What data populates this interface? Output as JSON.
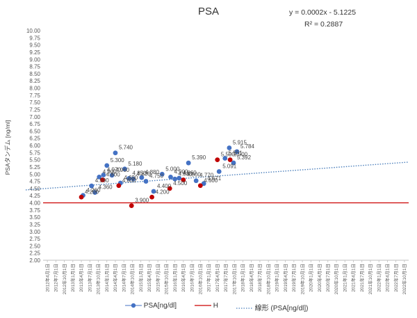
{
  "chart_data": {
    "type": "scatter",
    "title": "PSA",
    "trendline_equation": "y = 0.0002x - 5.1225",
    "r_squared": "R² = 0.2887",
    "ylabel": "PSAタンデム [ng/ml]",
    "xlabel": "",
    "ylim": [
      2.0,
      10.0
    ],
    "ystep": 0.25,
    "x_ticks": [
      "2012年4月1日",
      "2012年7月1日",
      "2012年10月1日",
      "2013年1月1日",
      "2013年4月1日",
      "2013年7月1日",
      "2013年10月1日",
      "2014年1月1日",
      "2014年4月1日",
      "2014年7月1日",
      "2014年10月1日",
      "2015年1月1日",
      "2015年4月1日",
      "2015年7月1日",
      "2015年10月1日",
      "2016年1月1日",
      "2016年4月1日",
      "2016年7月1日",
      "2016年10月1日",
      "2017年1月1日",
      "2017年4月1日",
      "2017年7月1日",
      "2017年10月1日",
      "2018年1月1日",
      "2018年4月1日",
      "2018年7月1日",
      "2018年10月1日",
      "2019年1月1日",
      "2019年4月1日",
      "2019年7月1日",
      "2019年10月1日",
      "2020年1月1日",
      "2020年4月1日",
      "2020年7月1日",
      "2020年10月1日",
      "2021年1月1日",
      "2021年4月1日",
      "2021年7月1日",
      "2021年10月1日",
      "2022年1月1日",
      "2022年4月1日",
      "2022年7月1日",
      "2022年10月1日"
    ],
    "h_line": {
      "name": "H",
      "value": 4.0,
      "color": "#cc0000"
    },
    "trend": {
      "name": "線形 (PSA[ng/dl])",
      "start": 4.45,
      "end": 5.42,
      "color": "#4a7ebb"
    },
    "series": [
      {
        "name": "PSA[ng/dl]",
        "color": "#4472c4",
        "points": [
          {
            "x": 4.2,
            "y": 4.26,
            "label": "4.260"
          },
          {
            "x": 5.2,
            "y": 4.59,
            "label": "4.590"
          },
          {
            "x": 5.6,
            "y": 4.36,
            "label": "4.360"
          },
          {
            "x": 6.1,
            "y": 4.9,
            "label": "4.900"
          },
          {
            "x": 6.6,
            "y": 4.97,
            "label": "4.970"
          },
          {
            "x": 7.0,
            "y": 5.3,
            "label": "5.300"
          },
          {
            "x": 7.6,
            "y": 4.96,
            "label": "4.960"
          },
          {
            "x": 8.0,
            "y": 5.74,
            "label": "5.740"
          },
          {
            "x": 8.6,
            "y": 4.69,
            "label": "4.690"
          },
          {
            "x": 9.1,
            "y": 5.18,
            "label": "5.180"
          },
          {
            "x": 9.6,
            "y": 4.85,
            "label": "4.850"
          },
          {
            "x": 10.1,
            "y": 4.83,
            "label": "4.830"
          },
          {
            "x": 11.1,
            "y": 4.88,
            "label": "4.880"
          },
          {
            "x": 11.6,
            "y": 4.75,
            "label": "4.750"
          },
          {
            "x": 12.5,
            "y": 4.4,
            "label": "4.400"
          },
          {
            "x": 13.5,
            "y": 5.0,
            "label": "5.000"
          },
          {
            "x": 14.5,
            "y": 4.9,
            "label": "4.900"
          },
          {
            "x": 15.0,
            "y": 4.83,
            "label": "4.830"
          },
          {
            "x": 15.5,
            "y": 4.86,
            "label": "4.860"
          },
          {
            "x": 16.6,
            "y": 5.39,
            "label": "5.390"
          },
          {
            "x": 17.5,
            "y": 4.77,
            "label": "4.770"
          },
          {
            "x": 18.4,
            "y": 4.671,
            "label": "4.671"
          },
          {
            "x": 20.2,
            "y": 5.091,
            "label": "5.091"
          },
          {
            "x": 20.9,
            "y": 5.551,
            "label": "5.551"
          },
          {
            "x": 21.4,
            "y": 5.915,
            "label": "5.915"
          },
          {
            "x": 21.9,
            "y": 5.392,
            "label": "5.392"
          },
          {
            "x": 22.3,
            "y": 5.784,
            "label": "5.784"
          }
        ]
      },
      {
        "color": "#c00000",
        "points": [
          {
            "x": 4.0,
            "y": 4.2,
            "label": "4.200"
          },
          {
            "x": 6.5,
            "y": 4.8,
            "label": "4.800"
          },
          {
            "x": 8.4,
            "y": 4.6,
            "label": "4.600"
          },
          {
            "x": 9.9,
            "y": 3.9,
            "label": "3.900"
          },
          {
            "x": 12.3,
            "y": 4.2,
            "label": "4.200"
          },
          {
            "x": 14.4,
            "y": 4.5,
            "label": "4.500"
          },
          {
            "x": 16.0,
            "y": 4.8,
            "label": "4.800"
          },
          {
            "x": 18.0,
            "y": 4.6,
            "label": "4.600"
          },
          {
            "x": 20.0,
            "y": 5.5,
            "label": "5.500"
          },
          {
            "x": 21.5,
            "y": 5.5,
            "label": "5.500"
          }
        ]
      }
    ],
    "legend": {
      "position": "bottom",
      "items": [
        "PSA[ng/dl]",
        "H",
        "線形 (PSA[ng/dl])"
      ]
    },
    "grid": false
  }
}
